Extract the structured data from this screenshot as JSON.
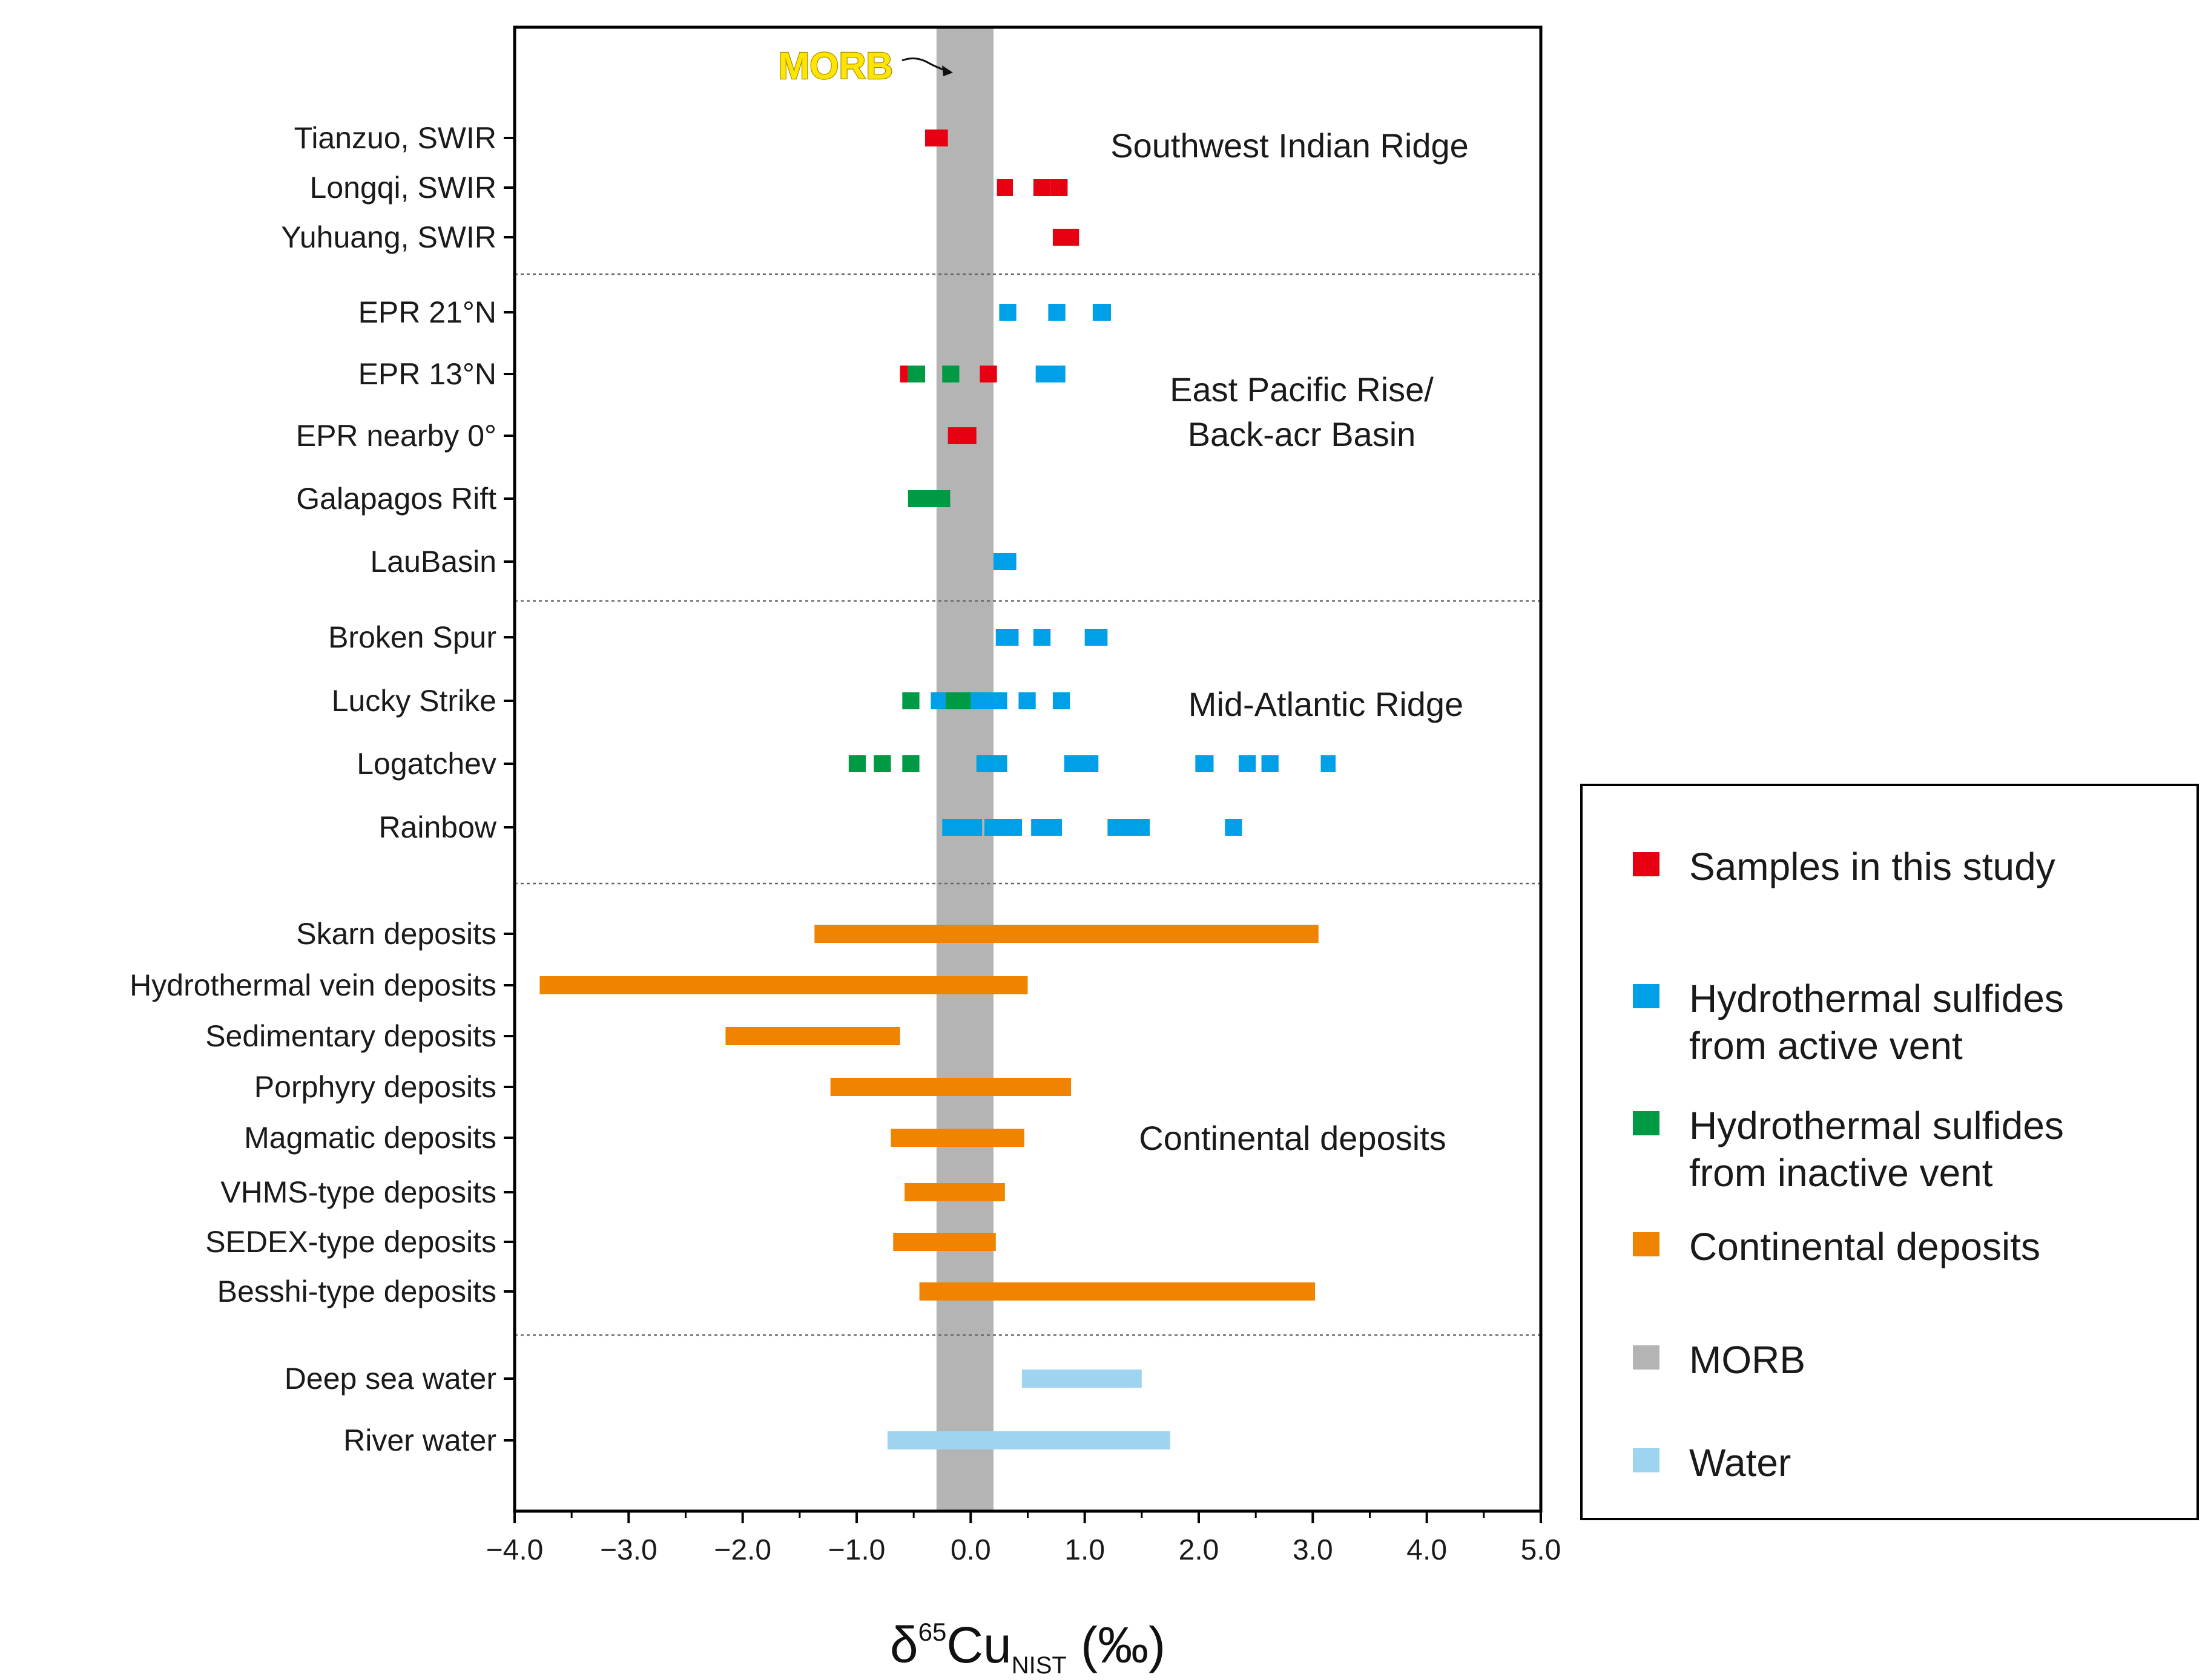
{
  "chart_data": {
    "type": "range-dot",
    "xlabel": {
      "prefix": "δ",
      "sup": "65",
      "main": "Cu",
      "sub": "NIST",
      "suffix": " (‰)"
    },
    "xlim": [
      -4.0,
      5.0
    ],
    "xticks": [
      -4,
      -3,
      -2,
      -1,
      0,
      1,
      2,
      3,
      4,
      5
    ],
    "xtick_labels": [
      "−4.0",
      "−3.0",
      "−2.0",
      "−1.0",
      "0.0",
      "1.0",
      "2.0",
      "3.0",
      "4.0",
      "5.0"
    ],
    "morb_band": {
      "label": "MORB",
      "range": [
        -0.3,
        0.2
      ]
    },
    "colors": {
      "this_study": "#e60012",
      "active": "#00a0e9",
      "inactive": "#009944",
      "continental": "#f08300",
      "morb": "#b4b4b4",
      "water": "#9fd4f1"
    },
    "groups": [
      {
        "label": "Southwest Indian Ridge",
        "rows": [
          {
            "label": "Tianzuo, SWIR",
            "marks": [
              {
                "type": "this_study",
                "range": [
                  -0.4,
                  -0.2
                ]
              }
            ]
          },
          {
            "label": "Longqi,  SWIR",
            "marks": [
              {
                "type": "this_study",
                "range": [
                  0.23,
                  0.37
                ]
              },
              {
                "type": "this_study",
                "range": [
                  0.55,
                  0.7
                ]
              },
              {
                "type": "this_study",
                "range": [
                  0.7,
                  0.85
                ]
              }
            ]
          },
          {
            "label": "Yuhuang,  SWIR",
            "marks": [
              {
                "type": "this_study",
                "range": [
                  0.72,
                  0.95
                ]
              }
            ]
          }
        ]
      },
      {
        "label": "East Pacific Rise/\nBack-acr Basin",
        "rows": [
          {
            "label": "EPR 21°N",
            "marks": [
              {
                "type": "active",
                "range": [
                  0.25,
                  0.4
                ]
              },
              {
                "type": "active",
                "range": [
                  0.68,
                  0.83
                ]
              },
              {
                "type": "active",
                "range": [
                  1.07,
                  1.23
                ]
              }
            ]
          },
          {
            "label": "EPR 13°N",
            "marks": [
              {
                "type": "this_study",
                "range": [
                  -0.62,
                  -0.55
                ]
              },
              {
                "type": "inactive",
                "range": [
                  -0.55,
                  -0.4
                ]
              },
              {
                "type": "inactive",
                "range": [
                  -0.25,
                  -0.1
                ]
              },
              {
                "type": "this_study",
                "range": [
                  0.08,
                  0.23
                ]
              },
              {
                "type": "active",
                "range": [
                  0.57,
                  0.83
                ]
              }
            ]
          },
          {
            "label": "EPR  nearby  0°",
            "marks": [
              {
                "type": "this_study",
                "range": [
                  -0.2,
                  0.05
                ]
              }
            ]
          },
          {
            "label": "Galapagos Rift",
            "marks": [
              {
                "type": "inactive",
                "range": [
                  -0.55,
                  -0.18
                ]
              }
            ]
          },
          {
            "label": "LauBasin",
            "marks": [
              {
                "type": "active",
                "range": [
                  0.2,
                  0.4
                ]
              }
            ]
          }
        ]
      },
      {
        "label": "Mid-Atlantic Ridge",
        "rows": [
          {
            "label": "Broken Spur",
            "marks": [
              {
                "type": "active",
                "range": [
                  0.22,
                  0.42
                ]
              },
              {
                "type": "active",
                "range": [
                  0.55,
                  0.7
                ]
              },
              {
                "type": "active",
                "range": [
                  1.0,
                  1.2
                ]
              }
            ]
          },
          {
            "label": "Lucky Strike",
            "marks": [
              {
                "type": "inactive",
                "range": [
                  -0.6,
                  -0.45
                ]
              },
              {
                "type": "active",
                "range": [
                  -0.35,
                  -0.22
                ]
              },
              {
                "type": "inactive",
                "range": [
                  -0.22,
                  0.0
                ]
              },
              {
                "type": "active",
                "range": [
                  0.0,
                  0.15
                ]
              },
              {
                "type": "active",
                "range": [
                  0.15,
                  0.32
                ]
              },
              {
                "type": "active",
                "range": [
                  0.42,
                  0.57
                ]
              },
              {
                "type": "active",
                "range": [
                  0.72,
                  0.87
                ]
              }
            ]
          },
          {
            "label": "Logatchev",
            "marks": [
              {
                "type": "inactive",
                "range": [
                  -1.07,
                  -0.92
                ]
              },
              {
                "type": "inactive",
                "range": [
                  -0.85,
                  -0.7
                ]
              },
              {
                "type": "inactive",
                "range": [
                  -0.6,
                  -0.45
                ]
              },
              {
                "type": "active",
                "range": [
                  0.05,
                  0.32
                ]
              },
              {
                "type": "active",
                "range": [
                  0.82,
                  1.12
                ]
              },
              {
                "type": "active",
                "range": [
                  1.97,
                  2.13
                ]
              },
              {
                "type": "active",
                "range": [
                  2.35,
                  2.5
                ]
              },
              {
                "type": "active",
                "range": [
                  2.55,
                  2.7
                ]
              },
              {
                "type": "active",
                "range": [
                  3.07,
                  3.2
                ]
              }
            ]
          },
          {
            "label": "Rainbow",
            "marks": [
              {
                "type": "active",
                "range": [
                  -0.25,
                  0.1
                ]
              },
              {
                "type": "active",
                "range": [
                  0.12,
                  0.45
                ]
              },
              {
                "type": "active",
                "range": [
                  0.53,
                  0.8
                ]
              },
              {
                "type": "active",
                "range": [
                  1.2,
                  1.57
                ]
              },
              {
                "type": "active",
                "range": [
                  2.23,
                  2.38
                ]
              }
            ]
          }
        ]
      },
      {
        "label": "Continental deposits",
        "rows": [
          {
            "label": "Skarn deposits",
            "marks": [
              {
                "type": "continental",
                "range": [
                  -1.37,
                  3.05
                ]
              }
            ]
          },
          {
            "label": "Hydrothermal vein deposits",
            "marks": [
              {
                "type": "continental",
                "range": [
                  -3.78,
                  0.5
                ]
              }
            ]
          },
          {
            "label": "Sedimentary deposits",
            "marks": [
              {
                "type": "continental",
                "range": [
                  -2.15,
                  -0.62
                ]
              }
            ]
          },
          {
            "label": "Porphyry deposits",
            "marks": [
              {
                "type": "continental",
                "range": [
                  -1.23,
                  0.88
                ]
              }
            ]
          },
          {
            "label": "Magmatic deposits",
            "marks": [
              {
                "type": "continental",
                "range": [
                  -0.7,
                  0.47
                ]
              }
            ]
          },
          {
            "label": "VHMS-type deposits",
            "marks": [
              {
                "type": "continental",
                "range": [
                  -0.58,
                  0.3
                ]
              }
            ]
          },
          {
            "label": "SEDEX-type deposits",
            "marks": [
              {
                "type": "continental",
                "range": [
                  -0.68,
                  0.22
                ]
              }
            ]
          },
          {
            "label": "Besshi-type deposits",
            "marks": [
              {
                "type": "continental",
                "range": [
                  -0.45,
                  3.02
                ]
              }
            ]
          }
        ]
      },
      {
        "label": "",
        "rows": [
          {
            "label": "Deep sea water",
            "marks": [
              {
                "type": "water",
                "range": [
                  0.45,
                  1.5
                ]
              }
            ]
          },
          {
            "label": "River water",
            "marks": [
              {
                "type": "water",
                "range": [
                  -0.73,
                  1.75
                ]
              }
            ]
          }
        ]
      }
    ],
    "legend": [
      {
        "type": "this_study",
        "label": [
          "Samples in this study"
        ]
      },
      {
        "type": "active",
        "label": [
          "Hydrothermal sulfides",
          " from active vent"
        ]
      },
      {
        "type": "inactive",
        "label": [
          "Hydrothermal sulfides",
          " from inactive vent"
        ]
      },
      {
        "type": "continental",
        "label": [
          "Continental deposits"
        ]
      },
      {
        "type": "morb",
        "label": [
          "MORB"
        ]
      },
      {
        "type": "water",
        "label": [
          "Water"
        ]
      }
    ]
  }
}
